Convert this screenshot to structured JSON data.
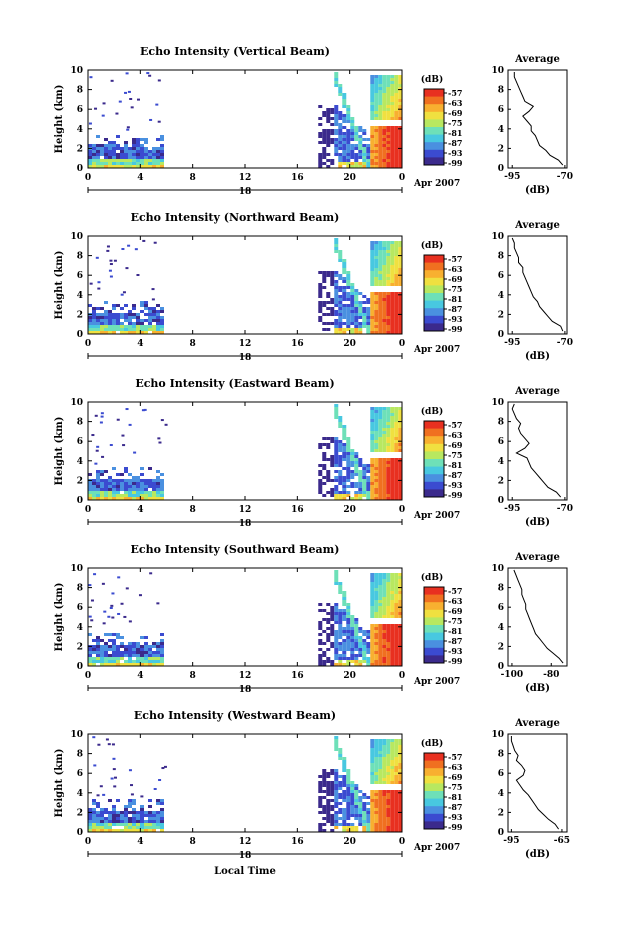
{
  "chart_data": [
    {
      "type": "heatmap",
      "title": "Echo Intensity (Vertical Beam)",
      "ylabel": "Height (km)",
      "ylim": [
        0,
        10
      ],
      "yticks": [
        "0",
        "2",
        "4",
        "6",
        "8",
        "10"
      ],
      "xlim": [
        0,
        24
      ],
      "xticks": [
        "0",
        "4",
        "8",
        "12",
        "16",
        "20",
        "0"
      ],
      "date_day": "18",
      "date_month": "Apr 2007",
      "colorbar": {
        "unit": "(dB)",
        "ticks": [
          "-57",
          "-63",
          "-69",
          "-75",
          "-81",
          "-87",
          "-93",
          "-99"
        ]
      },
      "average": {
        "title": "Average",
        "xlabel": "(dB)",
        "xticks": [
          "-95",
          "-70"
        ],
        "xlim": [
          -97,
          -69
        ],
        "yticks": [
          "0",
          "2",
          "4",
          "6",
          "8",
          "10"
        ],
        "heights": [
          0.3,
          0.8,
          1.3,
          1.8,
          2.3,
          2.8,
          3.3,
          3.8,
          4.3,
          4.8,
          5.3,
          5.8,
          6.3,
          6.8,
          7.3,
          7.8,
          8.3,
          8.8,
          9.3,
          9.8
        ],
        "values": [
          -71,
          -73,
          -77,
          -79,
          -82,
          -83,
          -84,
          -86,
          -86,
          -88,
          -90,
          -87,
          -85,
          -89,
          -90,
          -91,
          -92,
          -93,
          -94,
          -94
        ]
      }
    },
    {
      "type": "heatmap",
      "title": "Echo Intensity (Northward Beam)",
      "ylabel": "Height (km)",
      "ylim": [
        0,
        10
      ],
      "yticks": [
        "0",
        "2",
        "4",
        "6",
        "8",
        "10"
      ],
      "xlim": [
        0,
        24
      ],
      "xticks": [
        "0",
        "4",
        "8",
        "12",
        "16",
        "20",
        "0"
      ],
      "date_day": "18",
      "date_month": "Apr 2007",
      "colorbar": {
        "unit": "(dB)",
        "ticks": [
          "-57",
          "-63",
          "-69",
          "-75",
          "-81",
          "-87",
          "-93",
          "-99"
        ]
      },
      "average": {
        "title": "Average",
        "xlabel": "(dB)",
        "xticks": [
          "-95",
          "-70"
        ],
        "xlim": [
          -97,
          -69
        ],
        "yticks": [
          "0",
          "2",
          "4",
          "6",
          "8",
          "10"
        ],
        "heights": [
          0.3,
          0.8,
          1.3,
          1.8,
          2.3,
          2.8,
          3.3,
          3.8,
          4.3,
          4.8,
          5.3,
          5.8,
          6.3,
          6.8,
          7.3,
          7.8,
          8.3,
          8.8,
          9.3,
          9.8
        ],
        "values": [
          -71,
          -72,
          -76,
          -78,
          -80,
          -82,
          -83,
          -85,
          -86,
          -87,
          -88,
          -89,
          -90,
          -90,
          -92,
          -92,
          -93,
          -94,
          -94,
          -95
        ]
      }
    },
    {
      "type": "heatmap",
      "title": "Echo Intensity (Eastward Beam)",
      "ylabel": "Height (km)",
      "ylim": [
        0,
        10
      ],
      "yticks": [
        "0",
        "2",
        "4",
        "6",
        "8",
        "10"
      ],
      "xlim": [
        0,
        24
      ],
      "xticks": [
        "0",
        "4",
        "8",
        "12",
        "16",
        "20",
        "0"
      ],
      "date_day": "18",
      "date_month": "Apr 2007",
      "colorbar": {
        "unit": "(dB)",
        "ticks": [
          "-57",
          "-63",
          "-69",
          "-75",
          "-81",
          "-87",
          "-93",
          "-99"
        ]
      },
      "average": {
        "title": "Average",
        "xlabel": "(dB)",
        "xticks": [
          "-95",
          "-70"
        ],
        "xlim": [
          -97,
          -69
        ],
        "yticks": [
          "0",
          "2",
          "4",
          "6",
          "8",
          "10"
        ],
        "heights": [
          0.3,
          0.8,
          1.3,
          1.8,
          2.3,
          2.8,
          3.3,
          3.8,
          4.3,
          4.8,
          5.3,
          5.8,
          6.3,
          6.8,
          7.3,
          7.8,
          8.3,
          8.8,
          9.3,
          9.8
        ],
        "values": [
          -72,
          -74,
          -78,
          -80,
          -82,
          -84,
          -86,
          -87,
          -88,
          -93,
          -89,
          -87,
          -89,
          -91,
          -92,
          -91,
          -93,
          -94,
          -95,
          -94
        ]
      }
    },
    {
      "type": "heatmap",
      "title": "Echo Intensity (Southward Beam)",
      "ylabel": "Height (km)",
      "ylim": [
        0,
        10
      ],
      "yticks": [
        "0",
        "2",
        "4",
        "6",
        "8",
        "10"
      ],
      "xlim": [
        0,
        24
      ],
      "xticks": [
        "0",
        "4",
        "8",
        "12",
        "16",
        "20",
        "0"
      ],
      "date_day": "18",
      "date_month": "Apr 2007",
      "colorbar": {
        "unit": "(dB)",
        "ticks": [
          "-57",
          "-63",
          "-69",
          "-75",
          "-81",
          "-87",
          "-93",
          "-99"
        ]
      },
      "average": {
        "title": "Average",
        "xlabel": "(dB)",
        "xticks": [
          "-100",
          "-80"
        ],
        "xlim": [
          -102,
          -72
        ],
        "yticks": [
          "0",
          "2",
          "4",
          "6",
          "8",
          "10"
        ],
        "heights": [
          0.3,
          0.8,
          1.3,
          1.8,
          2.3,
          2.8,
          3.3,
          3.8,
          4.3,
          4.8,
          5.3,
          5.8,
          6.3,
          6.8,
          7.3,
          7.8,
          8.3,
          8.8,
          9.3,
          9.8
        ],
        "values": [
          -74,
          -76,
          -79,
          -82,
          -84,
          -86,
          -88,
          -89,
          -90,
          -91,
          -92,
          -93,
          -93,
          -94,
          -95,
          -95,
          -96,
          -97,
          -98,
          -99
        ]
      }
    },
    {
      "type": "heatmap",
      "title": "Echo Intensity (Westward Beam)",
      "ylabel": "Height (km)",
      "ylim": [
        0,
        10
      ],
      "yticks": [
        "0",
        "2",
        "4",
        "6",
        "8",
        "10"
      ],
      "xlim": [
        0,
        24
      ],
      "xticks": [
        "0",
        "4",
        "8",
        "12",
        "16",
        "20",
        "0"
      ],
      "date_day": "18",
      "date_month": "Apr 2007",
      "xlabel": "Local Time",
      "colorbar": {
        "unit": "(dB)",
        "ticks": [
          "-57",
          "-63",
          "-69",
          "-75",
          "-81",
          "-87",
          "-93",
          "-99"
        ]
      },
      "average": {
        "title": "Average",
        "xlabel": "(dB)",
        "xticks": [
          "-95",
          "-65"
        ],
        "xlim": [
          -97,
          -62
        ],
        "yticks": [
          "0",
          "2",
          "4",
          "6",
          "8",
          "10"
        ],
        "heights": [
          0.3,
          0.8,
          1.3,
          1.8,
          2.3,
          2.8,
          3.3,
          3.8,
          4.3,
          4.8,
          5.3,
          5.8,
          6.3,
          6.8,
          7.3,
          7.8,
          8.3,
          8.8,
          9.3,
          9.8
        ],
        "values": [
          -67,
          -69,
          -73,
          -76,
          -79,
          -81,
          -83,
          -85,
          -88,
          -90,
          -92,
          -88,
          -87,
          -89,
          -92,
          -91,
          -93,
          -94,
          -95,
          -95
        ]
      }
    }
  ],
  "colors": {
    "scale": [
      "#3b2a8c",
      "#3b4bd0",
      "#4a90e0",
      "#48c8e0",
      "#6ee0b8",
      "#b8e860",
      "#f0e040",
      "#f8b030",
      "#f07020",
      "#e83020"
    ]
  }
}
